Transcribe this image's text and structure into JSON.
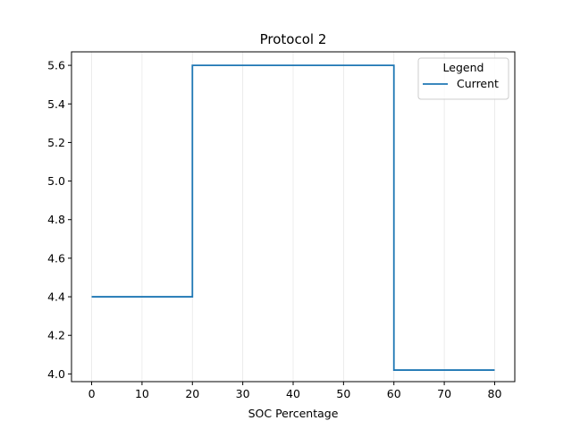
{
  "chart_data": {
    "type": "line",
    "step": "post",
    "title": "Protocol 2",
    "xlabel": "SOC Percentage",
    "ylabel": "",
    "xlim": [
      -4,
      84
    ],
    "ylim": [
      3.96,
      5.67
    ],
    "xticks": [
      0,
      10,
      20,
      30,
      40,
      50,
      60,
      70,
      80
    ],
    "yticks": [
      4.0,
      4.2,
      4.4,
      4.6,
      4.8,
      5.0,
      5.2,
      5.4,
      5.6
    ],
    "grid": "vertical",
    "legend": {
      "title": "Legend",
      "placement": "top-right"
    },
    "series": [
      {
        "name": "Current",
        "color": "#1f77b4",
        "x": [
          0,
          20,
          60,
          80
        ],
        "y": [
          4.4,
          5.6,
          4.02,
          4.02
        ]
      }
    ]
  }
}
